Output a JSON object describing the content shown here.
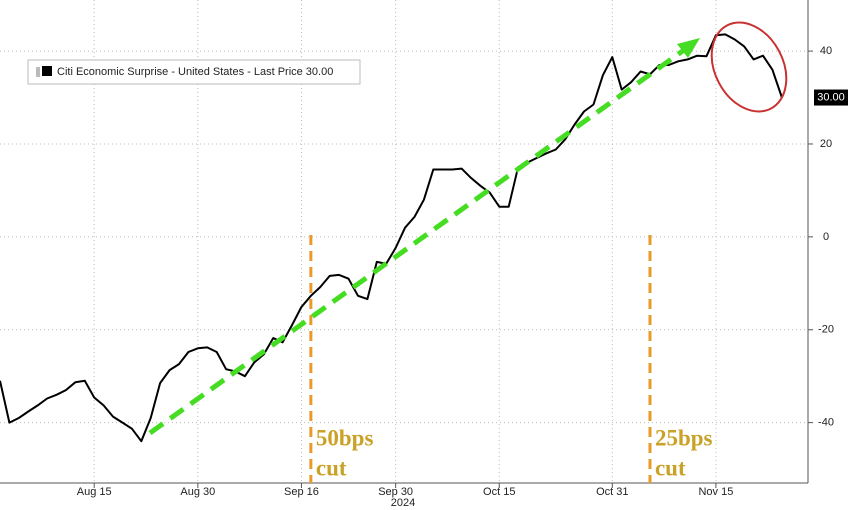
{
  "chart_data": {
    "type": "line",
    "x": [
      "2024-08-01",
      "2024-08-02",
      "2024-08-05",
      "2024-08-06",
      "2024-08-07",
      "2024-08-08",
      "2024-08-09",
      "2024-08-12",
      "2024-08-13",
      "2024-08-14",
      "2024-08-15",
      "2024-08-16",
      "2024-08-19",
      "2024-08-20",
      "2024-08-21",
      "2024-08-22",
      "2024-08-23",
      "2024-08-26",
      "2024-08-27",
      "2024-08-28",
      "2024-08-29",
      "2024-08-30",
      "2024-09-02",
      "2024-09-03",
      "2024-09-04",
      "2024-09-05",
      "2024-09-06",
      "2024-09-09",
      "2024-09-10",
      "2024-09-11",
      "2024-09-12",
      "2024-09-13",
      "2024-09-16",
      "2024-09-17",
      "2024-09-18",
      "2024-09-19",
      "2024-09-20",
      "2024-09-23",
      "2024-09-24",
      "2024-09-25",
      "2024-09-26",
      "2024-09-27",
      "2024-09-30",
      "2024-10-01",
      "2024-10-02",
      "2024-10-03",
      "2024-10-04",
      "2024-10-07",
      "2024-10-08",
      "2024-10-09",
      "2024-10-10",
      "2024-10-11",
      "2024-10-14",
      "2024-10-15",
      "2024-10-16",
      "2024-10-17",
      "2024-10-18",
      "2024-10-21",
      "2024-10-22",
      "2024-10-23",
      "2024-10-24",
      "2024-10-25",
      "2024-10-28",
      "2024-10-29",
      "2024-10-30",
      "2024-10-31",
      "2024-11-01",
      "2024-11-04",
      "2024-11-05",
      "2024-11-06",
      "2024-11-07",
      "2024-11-08",
      "2024-11-11",
      "2024-11-12",
      "2024-11-13",
      "2024-11-14",
      "2024-11-15",
      "2024-11-18",
      "2024-11-19",
      "2024-11-20",
      "2024-11-21",
      "2024-11-22",
      "2024-11-25",
      "2024-11-26"
    ],
    "series": [
      {
        "name": "Citi Economic Surprise - United States - Last Price 30.00",
        "color": "#000000",
        "values": [
          -31,
          -40,
          -39,
          -37.6,
          -36.3,
          -34.8,
          -34,
          -33,
          -31.3,
          -31,
          -34.6,
          -36.3,
          -38.7,
          -40,
          -41.3,
          -44,
          -39,
          -31.5,
          -28.7,
          -27.4,
          -24.8,
          -24,
          -23.8,
          -24.8,
          -28.5,
          -29,
          -30,
          -27,
          -25.3,
          -21.8,
          -22.7,
          -19,
          -15.1,
          -12.7,
          -10.8,
          -8.4,
          -8.2,
          -9,
          -12.7,
          -13.4,
          -5.4,
          -5.8,
          -2.4,
          2,
          4.3,
          8,
          14.5,
          14.5,
          14.5,
          14.7,
          12.7,
          11,
          9.5,
          6.5,
          6.5,
          15,
          16,
          17,
          18,
          18.8,
          21,
          24.2,
          27,
          28.5,
          34.8,
          38.7,
          31.7,
          33.3,
          35.6,
          35,
          37,
          37,
          37.8,
          38.2,
          39,
          38.9,
          43.4,
          43.6,
          42.5,
          41,
          38.2,
          39,
          36,
          30
        ],
        "value_labels": [
          null,
          null,
          null,
          null,
          null,
          null,
          null,
          null,
          null,
          null,
          null,
          null,
          null,
          null,
          null,
          null,
          null,
          null,
          null,
          null,
          null,
          null,
          null,
          null,
          null,
          null,
          null,
          null,
          null,
          null,
          null,
          null,
          null,
          null,
          null,
          null,
          null,
          null,
          null,
          null,
          null,
          null,
          null,
          null,
          null,
          null,
          null,
          null,
          null,
          null,
          null,
          null,
          null,
          null,
          null,
          null,
          null,
          null,
          null,
          null,
          null,
          null,
          null,
          null,
          null,
          null,
          null,
          null,
          null,
          null,
          null,
          null,
          null,
          null,
          null,
          null,
          null,
          null,
          null,
          null,
          null,
          null,
          null,
          "30.00"
        ]
      }
    ],
    "ylim": [
      -53,
      51
    ],
    "yticks": [
      -40,
      -20,
      0,
      20,
      40
    ],
    "xticks": [
      {
        "value": "2024-08-15",
        "label": "Aug 15"
      },
      {
        "value": "2024-08-30",
        "label": "Aug 30"
      },
      {
        "value": "2024-09-16",
        "label": "Sep 16"
      },
      {
        "value": "2024-09-30",
        "label": "Sep 30"
      },
      {
        "value": "2024-10-15",
        "label": "Oct 15"
      },
      {
        "value": "2024-10-31",
        "label": "Oct 31"
      },
      {
        "value": "2024-11-15",
        "label": "Nov 15"
      }
    ],
    "year_label": "2024",
    "grid": true,
    "annotations": [
      {
        "x": "2024-09-17",
        "lines": [
          "50bps",
          "cut"
        ]
      },
      {
        "x": "2024-11-06",
        "lines": [
          "25bps",
          "cut"
        ]
      }
    ]
  }
}
